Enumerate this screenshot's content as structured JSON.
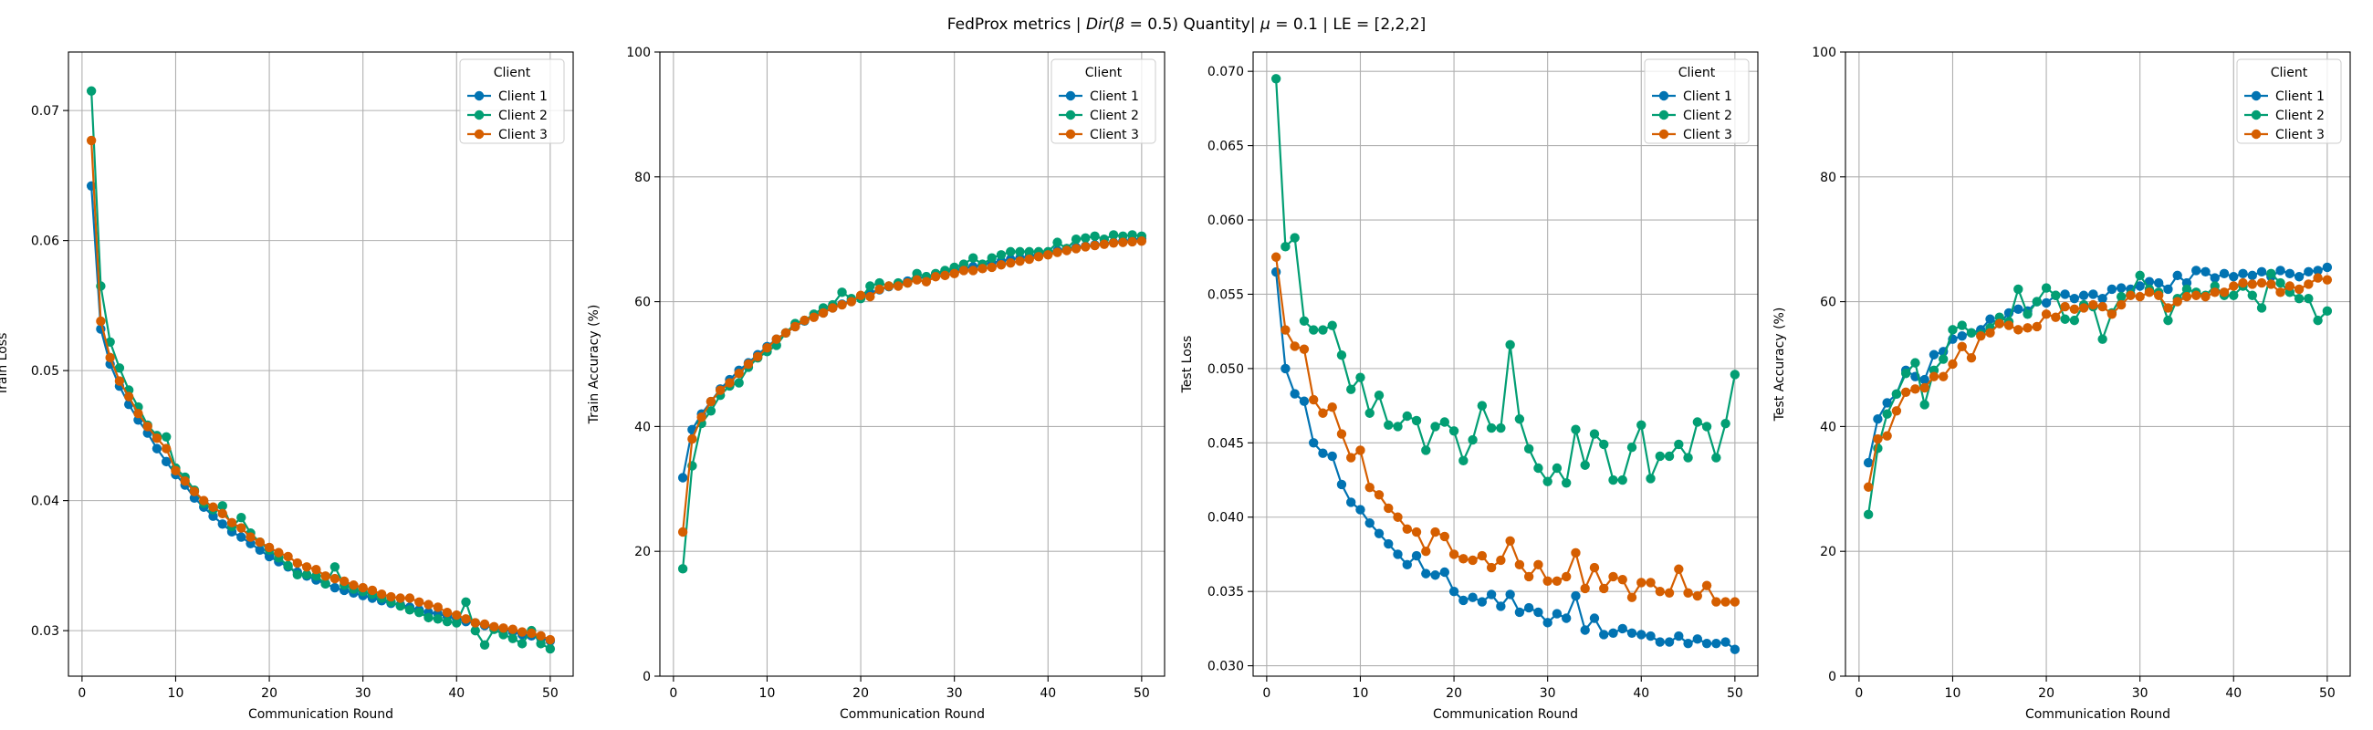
{
  "suptitle": "FedProx metrics | Dir(β = 0.5) Quantity| μ = 0.1 | LE = [2,2,2]",
  "suptitle_parts": {
    "a": "FedProx metrics | ",
    "dir": "Dir",
    "b": "(",
    "beta": "β",
    "c": " = 0.5) Quantity| ",
    "mu": "μ",
    "d": " = 0.1 | LE = [2,2,2]"
  },
  "legend_title": "Client",
  "colors": {
    "Client 1": "#0173b2",
    "Client 2": "#029e73",
    "Client 3": "#d55e00"
  },
  "chart_data": [
    {
      "type": "line",
      "xlabel": "Communication Round",
      "ylabel": "Train Loss",
      "xlim": [
        -1.45,
        52.45
      ],
      "ylim": [
        0.0265,
        0.0745
      ],
      "xticks": [
        0,
        10,
        20,
        30,
        40,
        50
      ],
      "yticks": [
        0.03,
        0.04,
        0.05,
        0.06,
        0.07
      ],
      "grid": true,
      "legend": "top-right",
      "x": [
        1,
        2,
        3,
        4,
        5,
        6,
        7,
        8,
        9,
        10,
        11,
        12,
        13,
        14,
        15,
        16,
        17,
        18,
        19,
        20,
        21,
        22,
        23,
        24,
        25,
        26,
        27,
        28,
        29,
        30,
        31,
        32,
        33,
        34,
        35,
        36,
        37,
        38,
        39,
        40,
        41,
        42,
        43,
        44,
        45,
        46,
        47,
        48,
        49,
        50
      ],
      "series": [
        {
          "name": "Client 1",
          "values": [
            0.0642,
            0.0532,
            0.0505,
            0.0488,
            0.0474,
            0.0462,
            0.0452,
            0.044,
            0.043,
            0.042,
            0.0412,
            0.0402,
            0.0395,
            0.0388,
            0.0382,
            0.0376,
            0.0372,
            0.0367,
            0.0362,
            0.0357,
            0.0353,
            0.0349,
            0.0345,
            0.0342,
            0.0339,
            0.0336,
            0.0333,
            0.0331,
            0.0329,
            0.0327,
            0.0325,
            0.0323,
            0.0321,
            0.032,
            0.0318,
            0.0316,
            0.0314,
            0.0313,
            0.0311,
            0.0309,
            0.0307,
            0.0306,
            0.0304,
            0.0302,
            0.0301,
            0.0299,
            0.0297,
            0.0296,
            0.0294,
            0.0292
          ]
        },
        {
          "name": "Client 2",
          "values": [
            0.0715,
            0.0565,
            0.0522,
            0.0502,
            0.0485,
            0.0472,
            0.0458,
            0.045,
            0.0449,
            0.0425,
            0.0418,
            0.0408,
            0.0398,
            0.0393,
            0.0396,
            0.038,
            0.0387,
            0.0375,
            0.0368,
            0.0362,
            0.0356,
            0.035,
            0.0343,
            0.0343,
            0.0342,
            0.0336,
            0.0349,
            0.0335,
            0.0332,
            0.033,
            0.0328,
            0.0325,
            0.0322,
            0.0319,
            0.0316,
            0.0314,
            0.031,
            0.0309,
            0.0307,
            0.0306,
            0.0322,
            0.03,
            0.0289,
            0.0301,
            0.0297,
            0.0294,
            0.029,
            0.03,
            0.029,
            0.0286
          ]
        },
        {
          "name": "Client 3",
          "values": [
            0.0677,
            0.0538,
            0.051,
            0.0492,
            0.048,
            0.0467,
            0.0457,
            0.0448,
            0.044,
            0.0423,
            0.0415,
            0.0407,
            0.04,
            0.0395,
            0.039,
            0.0383,
            0.0379,
            0.0372,
            0.0368,
            0.0364,
            0.036,
            0.0357,
            0.0352,
            0.0349,
            0.0347,
            0.0342,
            0.034,
            0.0338,
            0.0335,
            0.0333,
            0.0331,
            0.0328,
            0.0326,
            0.0325,
            0.0325,
            0.0322,
            0.032,
            0.0318,
            0.0314,
            0.0312,
            0.0309,
            0.0306,
            0.0305,
            0.0303,
            0.0302,
            0.0301,
            0.0299,
            0.0298,
            0.0296,
            0.0293
          ]
        }
      ]
    },
    {
      "type": "line",
      "xlabel": "Communication Round",
      "ylabel": "Train Accuracy (%)",
      "xlim": [
        -1.45,
        52.45
      ],
      "ylim": [
        0,
        100
      ],
      "xticks": [
        0,
        10,
        20,
        30,
        40,
        50
      ],
      "yticks": [
        0,
        20,
        40,
        60,
        80,
        100
      ],
      "grid": true,
      "legend": "top-right",
      "x": [
        1,
        2,
        3,
        4,
        5,
        6,
        7,
        8,
        9,
        10,
        11,
        12,
        13,
        14,
        15,
        16,
        17,
        18,
        19,
        20,
        21,
        22,
        23,
        24,
        25,
        26,
        27,
        28,
        29,
        30,
        31,
        32,
        33,
        34,
        35,
        36,
        37,
        38,
        39,
        40,
        41,
        42,
        43,
        44,
        45,
        46,
        47,
        48,
        49,
        50
      ],
      "series": [
        {
          "name": "Client 1",
          "values": [
            31.8,
            39.5,
            42.0,
            44.0,
            46.0,
            47.5,
            49.0,
            50.2,
            51.5,
            52.8,
            54.0,
            55.0,
            56.0,
            56.9,
            57.6,
            58.2,
            59.0,
            59.6,
            60.2,
            60.8,
            61.4,
            61.9,
            62.4,
            62.9,
            63.3,
            63.7,
            64.0,
            64.4,
            64.8,
            65.0,
            65.3,
            65.6,
            65.9,
            66.2,
            66.5,
            66.8,
            67.0,
            67.3,
            67.6,
            67.9,
            68.2,
            68.5,
            68.7,
            68.9,
            69.1,
            69.3,
            69.5,
            69.7,
            69.9,
            70.1
          ]
        },
        {
          "name": "Client 2",
          "values": [
            17.2,
            33.7,
            40.5,
            42.5,
            45.0,
            46.5,
            47.0,
            49.5,
            51.0,
            52.0,
            53.0,
            55.0,
            56.5,
            57.0,
            58.0,
            59.0,
            59.5,
            61.5,
            60.5,
            60.5,
            62.5,
            63.0,
            62.5,
            63.0,
            63.0,
            64.5,
            64.0,
            64.5,
            65.0,
            65.5,
            66.0,
            67.0,
            66.0,
            67.0,
            67.5,
            68.0,
            68.0,
            68.0,
            68.0,
            68.0,
            69.5,
            68.5,
            70.0,
            70.2,
            70.5,
            70.0,
            70.7,
            70.5,
            70.7,
            70.5
          ]
        },
        {
          "name": "Client 3",
          "values": [
            23.1,
            38.0,
            41.5,
            44.0,
            45.8,
            47.0,
            48.5,
            50.0,
            51.2,
            52.6,
            54.0,
            55.0,
            56.0,
            57.0,
            57.5,
            58.2,
            59.0,
            59.5,
            60.0,
            61.0,
            60.8,
            62.0,
            62.5,
            62.5,
            63.0,
            63.5,
            63.2,
            64.0,
            64.2,
            64.5,
            65.0,
            65.0,
            65.3,
            65.5,
            65.9,
            66.2,
            66.5,
            66.8,
            67.2,
            67.5,
            67.9,
            68.2,
            68.5,
            68.8,
            69.0,
            69.2,
            69.4,
            69.5,
            69.6,
            69.7
          ]
        }
      ]
    },
    {
      "type": "line",
      "xlabel": "Communication Round",
      "ylabel": "Test Loss",
      "xlim": [
        -1.45,
        52.45
      ],
      "ylim": [
        0.0293,
        0.0713
      ],
      "xticks": [
        0,
        10,
        20,
        30,
        40,
        50
      ],
      "yticks": [
        0.03,
        0.035,
        0.04,
        0.045,
        0.05,
        0.055,
        0.06,
        0.065,
        0.07
      ],
      "grid": true,
      "legend": "top-right",
      "x": [
        1,
        2,
        3,
        4,
        5,
        6,
        7,
        8,
        9,
        10,
        11,
        12,
        13,
        14,
        15,
        16,
        17,
        18,
        19,
        20,
        21,
        22,
        23,
        24,
        25,
        26,
        27,
        28,
        29,
        30,
        31,
        32,
        33,
        34,
        35,
        36,
        37,
        38,
        39,
        40,
        41,
        42,
        43,
        44,
        45,
        46,
        47,
        48,
        49,
        50
      ],
      "series": [
        {
          "name": "Client 1",
          "values": [
            0.0565,
            0.05,
            0.0483,
            0.0478,
            0.045,
            0.0443,
            0.0441,
            0.0422,
            0.041,
            0.0405,
            0.0396,
            0.0389,
            0.0382,
            0.0375,
            0.0368,
            0.0374,
            0.0362,
            0.0361,
            0.0363,
            0.035,
            0.0344,
            0.0346,
            0.0343,
            0.0348,
            0.034,
            0.0348,
            0.0336,
            0.0339,
            0.0336,
            0.0329,
            0.0335,
            0.0332,
            0.0347,
            0.0324,
            0.0332,
            0.0321,
            0.0322,
            0.0325,
            0.0322,
            0.0321,
            0.032,
            0.0316,
            0.0316,
            0.032,
            0.0315,
            0.0318,
            0.0315,
            0.0315,
            0.0316,
            0.0311
          ]
        },
        {
          "name": "Client 2",
          "values": [
            0.0695,
            0.0582,
            0.0588,
            0.0532,
            0.0526,
            0.0526,
            0.0529,
            0.0509,
            0.0486,
            0.0494,
            0.047,
            0.0482,
            0.0462,
            0.0461,
            0.0468,
            0.0465,
            0.0445,
            0.0461,
            0.0464,
            0.0458,
            0.0438,
            0.0452,
            0.0475,
            0.046,
            0.046,
            0.0516,
            0.0466,
            0.0446,
            0.0433,
            0.0424,
            0.0433,
            0.0423,
            0.0459,
            0.0435,
            0.0456,
            0.0449,
            0.0425,
            0.0425,
            0.0447,
            0.0462,
            0.0426,
            0.0441,
            0.0441,
            0.0449,
            0.044,
            0.0464,
            0.0461,
            0.044,
            0.0463,
            0.0496
          ]
        },
        {
          "name": "Client 3",
          "values": [
            0.0575,
            0.0526,
            0.0515,
            0.0513,
            0.0479,
            0.047,
            0.0474,
            0.0456,
            0.044,
            0.0445,
            0.042,
            0.0415,
            0.0406,
            0.04,
            0.0392,
            0.039,
            0.0377,
            0.039,
            0.0387,
            0.0375,
            0.0372,
            0.0371,
            0.0374,
            0.0366,
            0.0371,
            0.0384,
            0.0368,
            0.036,
            0.0368,
            0.0357,
            0.0357,
            0.036,
            0.0376,
            0.0352,
            0.0366,
            0.0352,
            0.036,
            0.0358,
            0.0346,
            0.0356,
            0.0356,
            0.035,
            0.0349,
            0.0365,
            0.0349,
            0.0347,
            0.0354,
            0.0343,
            0.0343,
            0.0343
          ]
        }
      ]
    },
    {
      "type": "line",
      "xlabel": "Communication Round",
      "ylabel": "Test Accuracy (%)",
      "xlim": [
        -1.45,
        52.45
      ],
      "ylim": [
        0,
        100
      ],
      "xticks": [
        0,
        10,
        20,
        30,
        40,
        50
      ],
      "yticks": [
        0,
        20,
        40,
        60,
        80,
        100
      ],
      "grid": true,
      "legend": "top-right",
      "x": [
        1,
        2,
        3,
        4,
        5,
        6,
        7,
        8,
        9,
        10,
        11,
        12,
        13,
        14,
        15,
        16,
        17,
        18,
        19,
        20,
        21,
        22,
        23,
        24,
        25,
        26,
        27,
        28,
        29,
        30,
        31,
        32,
        33,
        34,
        35,
        36,
        37,
        38,
        39,
        40,
        41,
        42,
        43,
        44,
        45,
        46,
        47,
        48,
        49,
        50
      ],
      "series": [
        {
          "name": "Client 1",
          "values": [
            34.2,
            41.2,
            43.8,
            45.2,
            49.0,
            48.0,
            47.5,
            51.5,
            52.0,
            54.0,
            54.5,
            55.0,
            55.5,
            57.2,
            56.5,
            58.2,
            58.8,
            58.5,
            60.0,
            59.8,
            61.0,
            61.2,
            60.5,
            61.0,
            61.2,
            60.5,
            62.0,
            62.2,
            62.0,
            62.5,
            63.2,
            63.0,
            62.0,
            64.2,
            63.0,
            65.0,
            64.8,
            63.8,
            64.5,
            64.0,
            64.5,
            64.2,
            64.8,
            64.0,
            65.0,
            64.5,
            64.0,
            64.8,
            65.0,
            65.5
          ]
        },
        {
          "name": "Client 2",
          "values": [
            25.9,
            36.5,
            42.0,
            45.2,
            48.5,
            50.2,
            43.5,
            49.0,
            50.8,
            55.5,
            56.2,
            55.0,
            54.8,
            55.8,
            57.5,
            56.8,
            62.0,
            58.0,
            60.0,
            62.2,
            61.0,
            57.2,
            57.0,
            59.5,
            59.2,
            54.0,
            58.2,
            60.8,
            61.2,
            64.2,
            62.0,
            61.5,
            57.0,
            60.5,
            62.0,
            61.5,
            61.0,
            62.5,
            61.0,
            61.0,
            62.5,
            61.0,
            59.0,
            64.5,
            63.0,
            61.5,
            60.5,
            60.5,
            57.0,
            58.5
          ]
        },
        {
          "name": "Client 3",
          "values": [
            30.3,
            38.0,
            38.5,
            42.5,
            45.5,
            46.0,
            46.2,
            48.0,
            48.0,
            50.0,
            52.8,
            51.0,
            54.5,
            55.0,
            56.5,
            56.2,
            55.5,
            55.8,
            56.0,
            58.0,
            57.5,
            59.2,
            58.8,
            59.0,
            59.5,
            59.2,
            58.0,
            59.5,
            61.0,
            60.8,
            61.5,
            61.0,
            59.0,
            60.0,
            60.8,
            61.0,
            60.8,
            61.5,
            61.5,
            62.5,
            63.0,
            62.8,
            63.0,
            62.8,
            61.5,
            62.5,
            62.0,
            62.8,
            63.8,
            63.5
          ]
        }
      ]
    }
  ]
}
